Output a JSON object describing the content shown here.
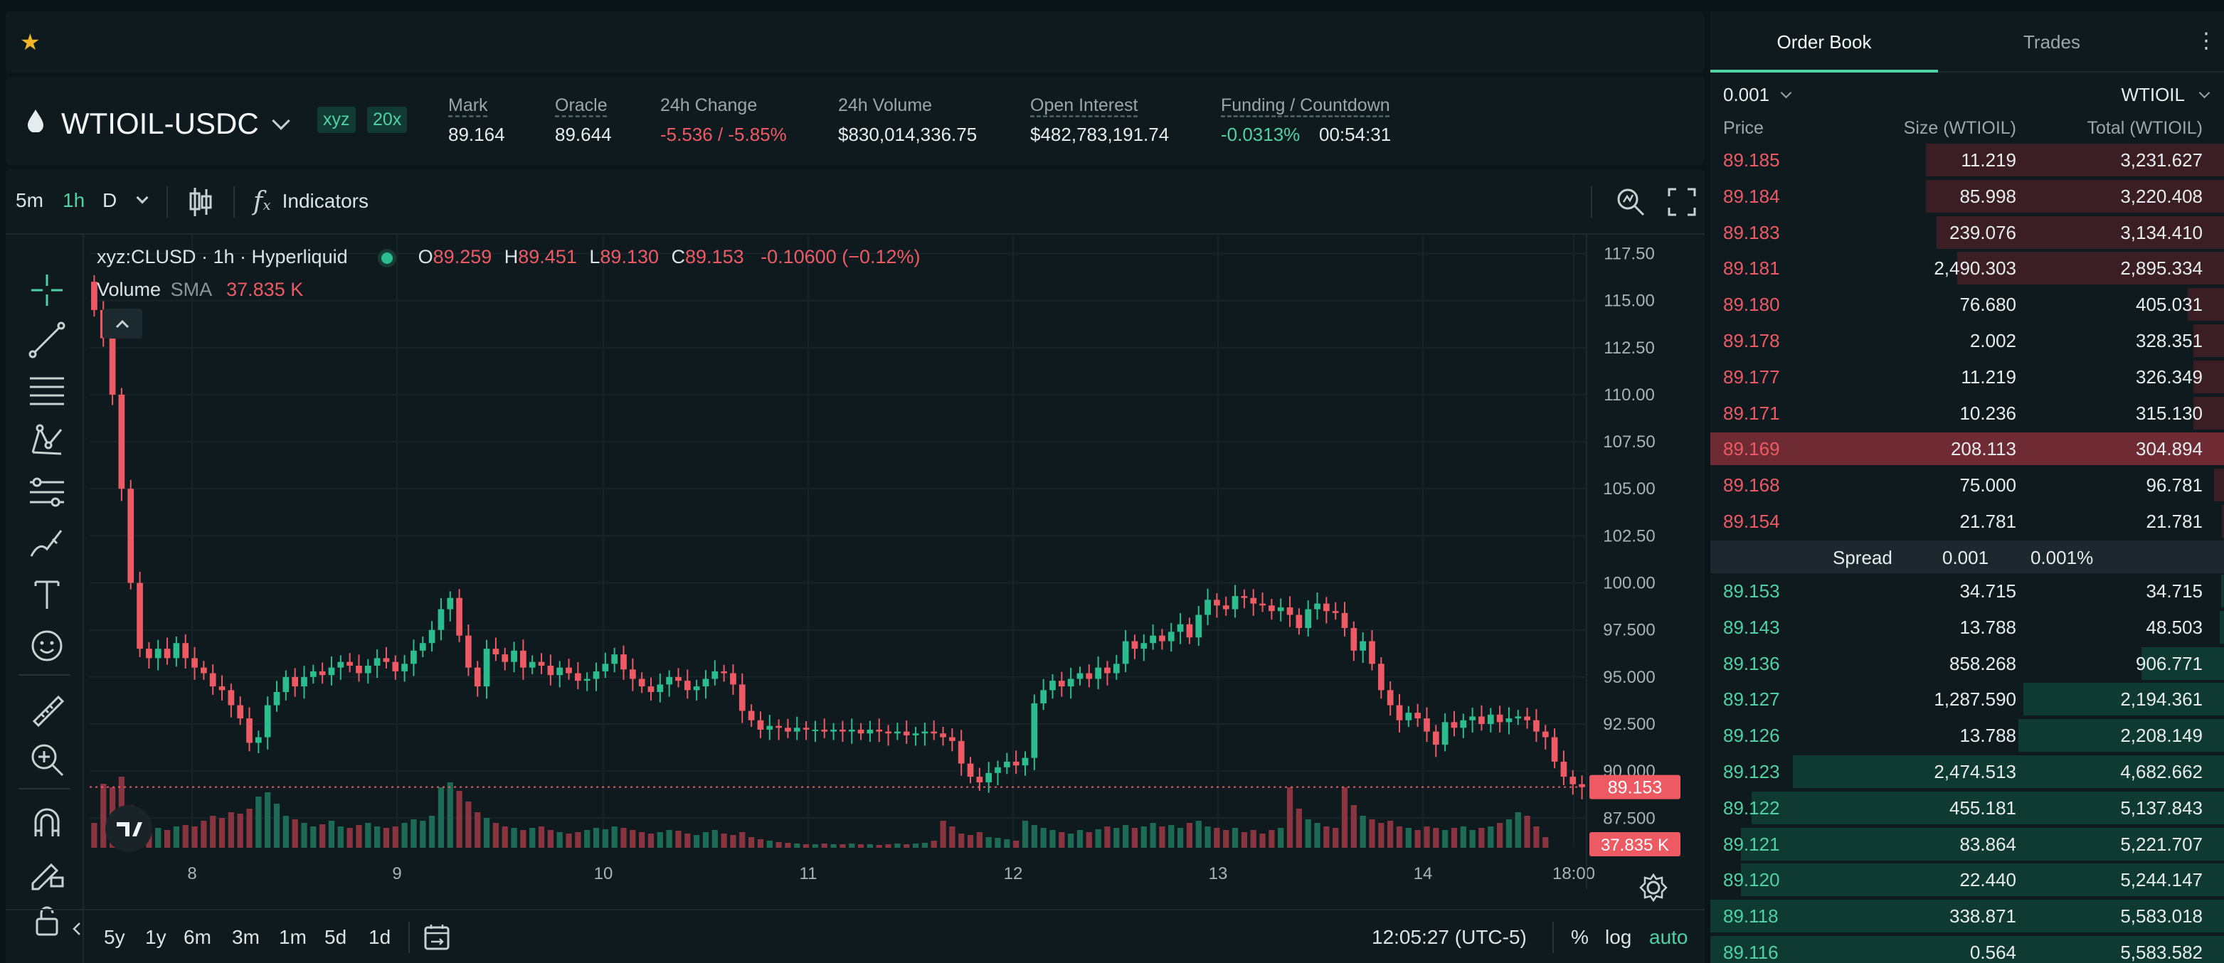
{
  "favorites": {
    "star_icon": "star-icon"
  },
  "market": {
    "symbol": "WTIOIL-USDC",
    "dex_badge": "xyz",
    "leverage_badge": "20x",
    "stats": [
      {
        "label": "Mark",
        "value": "89.164",
        "underline": true,
        "color": "default"
      },
      {
        "label": "Oracle",
        "value": "89.644",
        "underline": true,
        "color": "default"
      },
      {
        "label": "24h Change",
        "value": "-5.536 / -5.85%",
        "underline": false,
        "color": "red"
      },
      {
        "label": "24h Volume",
        "value": "$830,014,336.75",
        "underline": false,
        "color": "default"
      },
      {
        "label": "Open Interest",
        "value": "$482,783,191.74",
        "underline": true,
        "color": "default"
      },
      {
        "label": "Funding / Countdown",
        "value": "-0.0313%",
        "value2": "00:54:31",
        "underline": true,
        "color": "green"
      }
    ]
  },
  "chart_toolbar": {
    "intervals": [
      "5m",
      "1h",
      "D"
    ],
    "active_interval": "1h",
    "indicators_label": "Indicators"
  },
  "chart_legend": {
    "title": "xyz:CLUSD · 1h · Hyperliquid",
    "o_label": "O",
    "o": "89.259",
    "h_label": "H",
    "h": "89.451",
    "l_label": "L",
    "l": "89.130",
    "c_label": "C",
    "c": "89.153",
    "change": "-0.10600 (−0.12%)",
    "volume_label": "Volume",
    "sma_label": "SMA",
    "volume_value": "37.835 K"
  },
  "chart_data": {
    "type": "candlestick",
    "ylim": [
      86,
      118.5
    ],
    "price_ticks": [
      "117.50",
      "115.00",
      "112.50",
      "110.00",
      "107.50",
      "105.00",
      "102.50",
      "100.00",
      "97.500",
      "95.000",
      "92.500",
      "90.000",
      "87.500"
    ],
    "price_tick_values": [
      117.5,
      115,
      112.5,
      110,
      107.5,
      105,
      102.5,
      100,
      97.5,
      95,
      92.5,
      90,
      87.5
    ],
    "x_ticks": [
      "8",
      "9",
      "10",
      "11",
      "12",
      "13",
      "14",
      "18:00"
    ],
    "last_price_label": "89.153",
    "last_price": 89.153,
    "last_volume_label": "37.835 K",
    "close_series": [
      114.5,
      113,
      110,
      105,
      100,
      96.5,
      96,
      96.5,
      96,
      96.8,
      96,
      95.5,
      95.2,
      94.5,
      94.3,
      93.5,
      92.8,
      91.5,
      91.8,
      93.5,
      94.2,
      95,
      94.5,
      95,
      95.3,
      95.1,
      95.5,
      95.8,
      95.6,
      95.2,
      95.6,
      96,
      95.8,
      95.3,
      95.7,
      96.4,
      96.8,
      97.5,
      98.6,
      99.2,
      97.2,
      95.5,
      94.5,
      96.5,
      96.2,
      95.8,
      96.4,
      95.5,
      95.8,
      95.6,
      95.1,
      95.5,
      95.2,
      94.8,
      94.9,
      95.3,
      95.7,
      96.2,
      95.4,
      94.9,
      94.5,
      94.2,
      94.6,
      95,
      94.8,
      94.3,
      94.5,
      94.9,
      95.3,
      95.2,
      94.6,
      93.2,
      92.7,
      92.2,
      92.4,
      92.3,
      92.1,
      92.3,
      92.2,
      92.2,
      92.1,
      92.2,
      92.1,
      92.2,
      92,
      92.2,
      92.1,
      92,
      92.1,
      91.9,
      92,
      92.1,
      92,
      91.8,
      91.6,
      90.4,
      89.7,
      89.4,
      89.9,
      90.2,
      90.5,
      90.3,
      90.7,
      93.6,
      94.3,
      94.8,
      94.5,
      94.9,
      95.2,
      94.9,
      95.5,
      95.2,
      95.7,
      96.9,
      96.5,
      96.8,
      97.2,
      96.9,
      97.4,
      97.8,
      97.1,
      98.3,
      99.1,
      98.8,
      98.6,
      99.3,
      99.2,
      98.9,
      98.8,
      98.5,
      98.7,
      98.3,
      97.6,
      98.6,
      98.9,
      98.5,
      98.4,
      97.6,
      96.4,
      96.9,
      95.7,
      94.3,
      93.5,
      92.7,
      93.1,
      92.8,
      92.1,
      91.4,
      92.6,
      92.3,
      92.7,
      92.9,
      92.5,
      93,
      92.6,
      92.8,
      92.9,
      92.7,
      92.1,
      91.8,
      90.5,
      89.7,
      89.3,
      89.15
    ],
    "volume_series": [
      0.35,
      0.9,
      0.85,
      1.0,
      0.6,
      0.35,
      0.3,
      0.28,
      0.25,
      0.3,
      0.32,
      0.3,
      0.38,
      0.45,
      0.42,
      0.5,
      0.48,
      0.55,
      0.72,
      0.78,
      0.62,
      0.45,
      0.4,
      0.35,
      0.3,
      0.33,
      0.38,
      0.3,
      0.28,
      0.32,
      0.35,
      0.3,
      0.28,
      0.3,
      0.35,
      0.4,
      0.38,
      0.45,
      0.85,
      0.92,
      0.8,
      0.65,
      0.5,
      0.42,
      0.35,
      0.3,
      0.28,
      0.25,
      0.28,
      0.3,
      0.25,
      0.22,
      0.2,
      0.22,
      0.25,
      0.28,
      0.26,
      0.3,
      0.28,
      0.25,
      0.22,
      0.2,
      0.22,
      0.25,
      0.24,
      0.2,
      0.18,
      0.22,
      0.25,
      0.2,
      0.18,
      0.22,
      0.15,
      0.12,
      0.1,
      0.08,
      0.07,
      0.06,
      0.05,
      0.05,
      0.06,
      0.05,
      0.05,
      0.06,
      0.05,
      0.05,
      0.04,
      0.05,
      0.06,
      0.05,
      0.06,
      0.07,
      0.1,
      0.38,
      0.3,
      0.2,
      0.18,
      0.22,
      0.15,
      0.14,
      0.12,
      0.1,
      0.38,
      0.32,
      0.28,
      0.25,
      0.22,
      0.2,
      0.25,
      0.22,
      0.26,
      0.3,
      0.28,
      0.32,
      0.28,
      0.3,
      0.35,
      0.3,
      0.32,
      0.28,
      0.35,
      0.38,
      0.3,
      0.28,
      0.25,
      0.28,
      0.22,
      0.25,
      0.2,
      0.25,
      0.28,
      0.85,
      0.55,
      0.4,
      0.35,
      0.3,
      0.28,
      0.85,
      0.6,
      0.45,
      0.4,
      0.35,
      0.38,
      0.3,
      0.28,
      0.25,
      0.3,
      0.28,
      0.25,
      0.28,
      0.3,
      0.25,
      0.28,
      0.3,
      0.35,
      0.4,
      0.5,
      0.45,
      0.3,
      0.15
    ]
  },
  "drawing_tools": [
    "crosshair-icon",
    "trend-line-icon",
    "horizontal-lines-icon",
    "pattern-icon",
    "fib-icon",
    "brush-icon",
    "text-icon",
    "emoji-icon",
    "ruler-icon",
    "zoom-in-icon",
    "magnet-icon",
    "pencil-lock-icon",
    "lock-icon"
  ],
  "bottom_bar": {
    "ranges": [
      "5y",
      "1y",
      "6m",
      "3m",
      "1m",
      "5d",
      "1d"
    ],
    "time": "12:05:27 (UTC-5)",
    "percent_label": "%",
    "log_label": "log",
    "auto_label": "auto"
  },
  "orderbook": {
    "tabs": [
      "Order Book",
      "Trades"
    ],
    "active_tab": "Order Book",
    "tick_size": "0.001",
    "unit_select": "WTIOIL",
    "col_price": "Price",
    "col_size": "Size (WTIOIL)",
    "col_total": "Total (WTIOIL)",
    "asks": [
      {
        "price": "89.185",
        "size": "11.219",
        "total": "3,231.627",
        "depth": 0.58
      },
      {
        "price": "89.184",
        "size": "85.998",
        "total": "3,220.408",
        "depth": 0.58
      },
      {
        "price": "89.183",
        "size": "239.076",
        "total": "3,134.410",
        "depth": 0.56
      },
      {
        "price": "89.181",
        "size": "2,490.303",
        "total": "2,895.334",
        "depth": 0.52
      },
      {
        "price": "89.180",
        "size": "76.680",
        "total": "405.031",
        "depth": 0.07
      },
      {
        "price": "89.178",
        "size": "2.002",
        "total": "328.351",
        "depth": 0.06
      },
      {
        "price": "89.177",
        "size": "11.219",
        "total": "326.349",
        "depth": 0.06
      },
      {
        "price": "89.171",
        "size": "10.236",
        "total": "315.130",
        "depth": 0.06
      },
      {
        "price": "89.169",
        "size": "208.113",
        "total": "304.894",
        "depth": 1.0,
        "highlight": true
      },
      {
        "price": "89.168",
        "size": "75.000",
        "total": "96.781",
        "depth": 0.02
      },
      {
        "price": "89.154",
        "size": "21.781",
        "total": "21.781",
        "depth": 0.004
      }
    ],
    "spread_label": "Spread",
    "spread_value": "0.001",
    "spread_pct": "0.001%",
    "bids": [
      {
        "price": "89.153",
        "size": "34.715",
        "total": "34.715",
        "depth": 0.006
      },
      {
        "price": "89.143",
        "size": "13.788",
        "total": "48.503",
        "depth": 0.009
      },
      {
        "price": "89.136",
        "size": "858.268",
        "total": "906.771",
        "depth": 0.16
      },
      {
        "price": "89.127",
        "size": "1,287.590",
        "total": "2,194.361",
        "depth": 0.39
      },
      {
        "price": "89.126",
        "size": "13.788",
        "total": "2,208.149",
        "depth": 0.4
      },
      {
        "price": "89.123",
        "size": "2,474.513",
        "total": "4,682.662",
        "depth": 0.84
      },
      {
        "price": "89.122",
        "size": "455.181",
        "total": "5,137.843",
        "depth": 0.92
      },
      {
        "price": "89.121",
        "size": "83.864",
        "total": "5,221.707",
        "depth": 0.94
      },
      {
        "price": "89.120",
        "size": "22.440",
        "total": "5,244.147",
        "depth": 0.94
      },
      {
        "price": "89.118",
        "size": "338.871",
        "total": "5,583.018",
        "depth": 1.0
      },
      {
        "price": "89.116",
        "size": "0.564",
        "total": "5,583.582",
        "depth": 1.0
      }
    ]
  },
  "colors": {
    "up": "#2bbd8e",
    "down": "#ed5a64",
    "accent": "#4fd1a5",
    "ask_bg": "#3a1e24",
    "bid_bg": "#0f3a31"
  }
}
